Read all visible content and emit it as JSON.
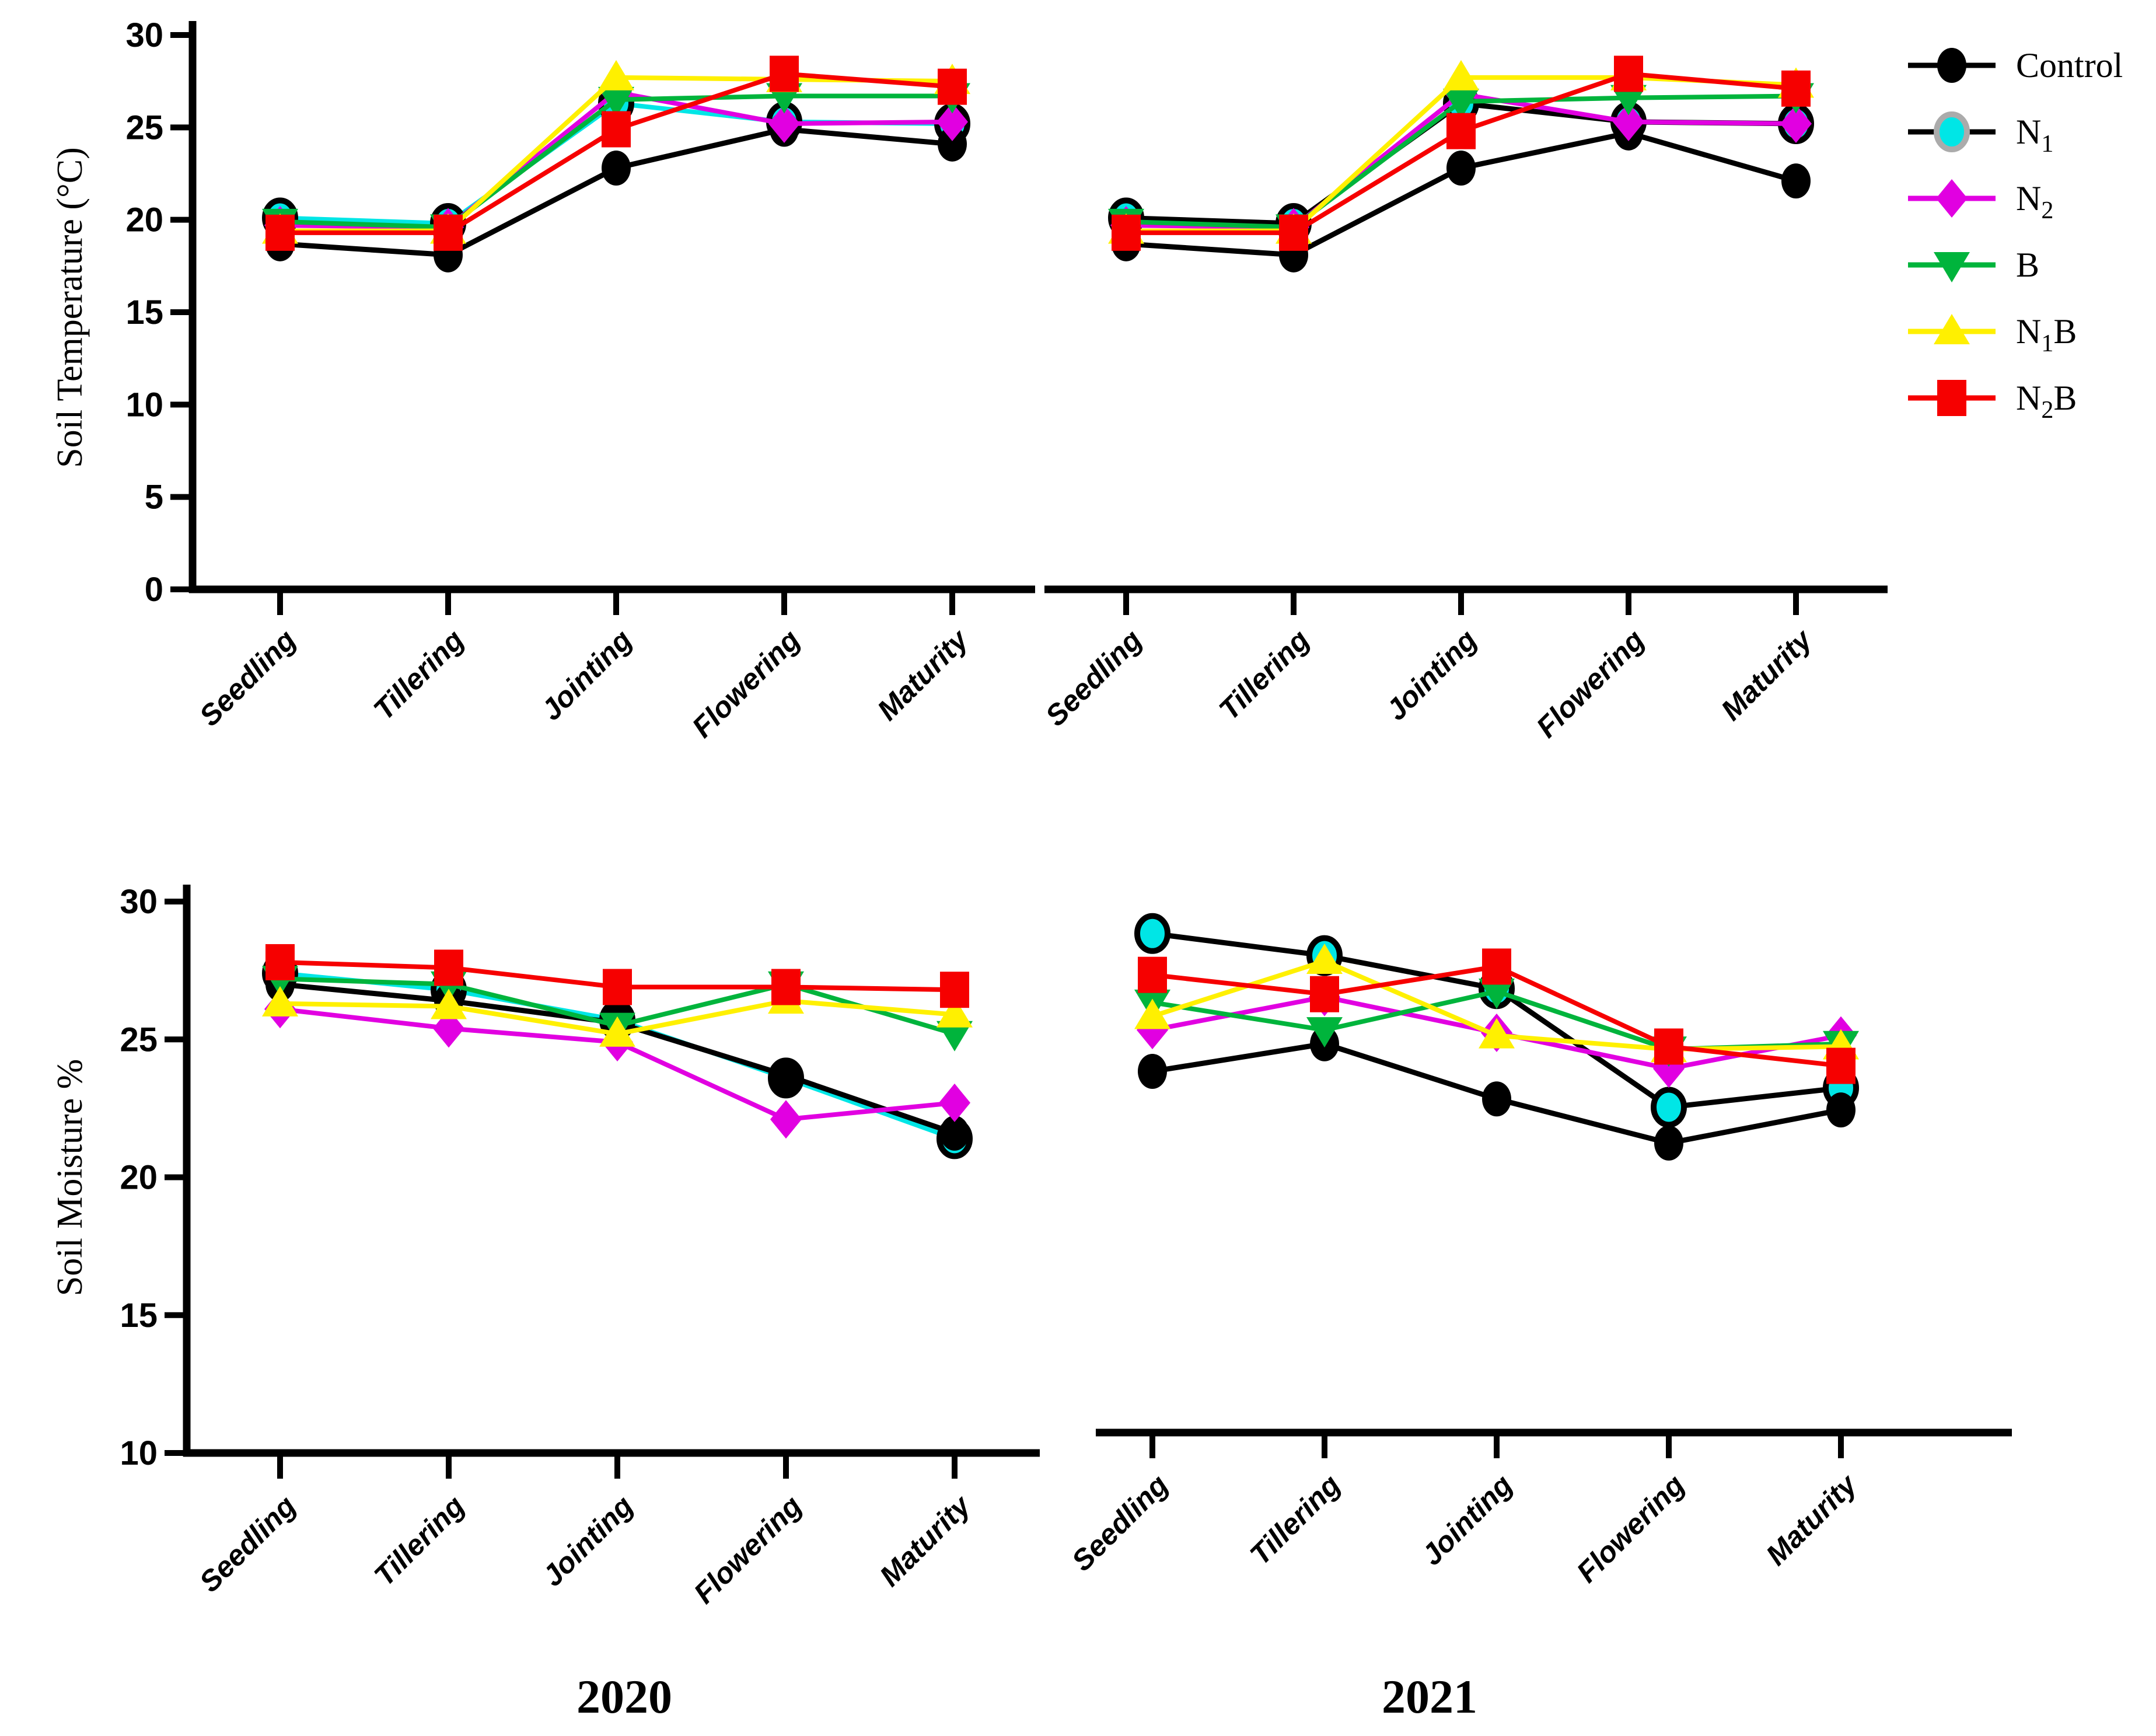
{
  "figure": {
    "background_color": "#ffffff",
    "stages": [
      "Seedling",
      "Tillering",
      "Jointing",
      "Flowering",
      "Maturity"
    ],
    "years": [
      "2020",
      "2021"
    ],
    "axis_color": "#000000",
    "legend": {
      "position": "top-right",
      "items": [
        {
          "label": "Control",
          "parts": [
            [
              "t",
              "Control"
            ]
          ],
          "marker": "circle",
          "marker_color": "#000000",
          "marker_stroke": null,
          "line_color": "#000000"
        },
        {
          "label": "N1",
          "parts": [
            [
              "t",
              "N"
            ],
            [
              "s",
              "1"
            ]
          ],
          "marker": "circle",
          "marker_color": "#00e6e6",
          "marker_stroke": "#ababab",
          "line_color": "#000000"
        },
        {
          "label": "N2",
          "parts": [
            [
              "t",
              "N"
            ],
            [
              "s",
              "2"
            ]
          ],
          "marker": "diamond",
          "marker_color": "#e100e1",
          "marker_stroke": null,
          "line_color": "#e100e1"
        },
        {
          "label": "B",
          "parts": [
            [
              "t",
              "B"
            ]
          ],
          "marker": "triangle-down",
          "marker_color": "#00b43c",
          "marker_stroke": null,
          "line_color": "#00b43c"
        },
        {
          "label": "N1B",
          "parts": [
            [
              "t",
              "N"
            ],
            [
              "s",
              "1"
            ],
            [
              "t",
              "B"
            ]
          ],
          "marker": "triangle-up",
          "marker_color": "#fff000",
          "marker_stroke": null,
          "line_color": "#fff000"
        },
        {
          "label": "N2B",
          "parts": [
            [
              "t",
              "N"
            ],
            [
              "s",
              "2"
            ],
            [
              "t",
              "B"
            ]
          ],
          "marker": "square",
          "marker_color": "#f60000",
          "marker_stroke": null,
          "line_color": "#f60000"
        }
      ]
    }
  },
  "chart_data": [
    {
      "id": "soil-temperature-2020",
      "type": "line",
      "year": "2020",
      "title": "",
      "xlabel": "",
      "ylabel": "Soil Temperature (°C)",
      "ylim": [
        0,
        30
      ],
      "yticks": [
        0,
        5,
        10,
        15,
        20,
        25,
        30
      ],
      "grid": false,
      "categories": [
        "Seedling",
        "Tillering",
        "Jointing",
        "Flowering",
        "Maturity"
      ],
      "series": [
        {
          "name": "Control",
          "marker": "circle",
          "marker_color": "#000000",
          "marker_stroke": null,
          "line_color": "#000000",
          "values": [
            18.7,
            18.1,
            22.8,
            24.9,
            24.1
          ]
        },
        {
          "name": "N1",
          "marker": "circle",
          "marker_color": "#00e6e6",
          "marker_stroke": "#000000",
          "line_color": "#00e6e6",
          "values": [
            20.1,
            19.8,
            26.3,
            25.3,
            25.2
          ]
        },
        {
          "name": "N2",
          "marker": "diamond",
          "marker_color": "#e100e1",
          "marker_stroke": null,
          "line_color": "#e100e1",
          "values": [
            19.7,
            19.6,
            26.9,
            25.2,
            25.3
          ]
        },
        {
          "name": "B",
          "marker": "triangle-down",
          "marker_color": "#00b43c",
          "marker_stroke": null,
          "line_color": "#00b43c",
          "values": [
            19.9,
            19.6,
            26.5,
            26.7,
            26.7
          ]
        },
        {
          "name": "N1B",
          "marker": "triangle-up",
          "marker_color": "#fff000",
          "marker_stroke": null,
          "line_color": "#fff000",
          "values": [
            19.4,
            19.4,
            27.7,
            27.6,
            27.5
          ]
        },
        {
          "name": "N2B",
          "marker": "square",
          "marker_color": "#f60000",
          "marker_stroke": null,
          "line_color": "#f60000",
          "values": [
            19.3,
            19.3,
            24.9,
            27.9,
            27.2
          ]
        }
      ]
    },
    {
      "id": "soil-temperature-2021",
      "type": "line",
      "year": "2021",
      "title": "",
      "xlabel": "",
      "ylabel": "Soil Temperature (°C)",
      "ylim": [
        0,
        30
      ],
      "yticks": [
        0,
        5,
        10,
        15,
        20,
        25,
        30
      ],
      "grid": false,
      "categories": [
        "Seedling",
        "Tillering",
        "Jointing",
        "Flowering",
        "Maturity"
      ],
      "series": [
        {
          "name": "Control",
          "marker": "circle",
          "marker_color": "#000000",
          "marker_stroke": null,
          "line_color": "#000000",
          "values": [
            18.7,
            18.1,
            22.8,
            24.7,
            22.1
          ]
        },
        {
          "name": "N1",
          "marker": "circle",
          "marker_color": "#00e6e6",
          "marker_stroke": "#000000",
          "line_color": "#000000",
          "values": [
            20.1,
            19.8,
            26.3,
            25.3,
            25.2
          ]
        },
        {
          "name": "N2",
          "marker": "diamond",
          "marker_color": "#e100e1",
          "marker_stroke": null,
          "line_color": "#e100e1",
          "values": [
            19.7,
            19.6,
            26.8,
            25.3,
            25.2
          ]
        },
        {
          "name": "B",
          "marker": "triangle-down",
          "marker_color": "#00b43c",
          "marker_stroke": null,
          "line_color": "#00b43c",
          "values": [
            19.9,
            19.6,
            26.4,
            26.6,
            26.7
          ]
        },
        {
          "name": "N1B",
          "marker": "triangle-up",
          "marker_color": "#fff000",
          "marker_stroke": null,
          "line_color": "#fff000",
          "values": [
            19.4,
            19.4,
            27.7,
            27.7,
            27.3
          ]
        },
        {
          "name": "N2B",
          "marker": "square",
          "marker_color": "#f60000",
          "marker_stroke": null,
          "line_color": "#f60000",
          "values": [
            19.3,
            19.3,
            24.8,
            27.9,
            27.1
          ]
        }
      ]
    },
    {
      "id": "soil-moisture-2020",
      "type": "line",
      "year": "2020",
      "title": "",
      "xlabel": "",
      "ylabel": "Soil Moisture %",
      "ylim": [
        10,
        30
      ],
      "yticks": [
        10,
        15,
        20,
        25,
        30
      ],
      "grid": false,
      "categories": [
        "Seedling",
        "Tillering",
        "Jointing",
        "Flowering",
        "Maturity"
      ],
      "series": [
        {
          "name": "Control",
          "marker": "circle",
          "marker_color": "#000000",
          "marker_stroke": null,
          "line_color": "#000000",
          "values": [
            27.0,
            26.4,
            25.6,
            23.7,
            21.6
          ]
        },
        {
          "name": "N1",
          "marker": "circle",
          "marker_color": "#00e6e6",
          "marker_stroke": "#000000",
          "line_color": "#00e6e6",
          "values": [
            27.4,
            26.8,
            25.7,
            23.6,
            21.4
          ]
        },
        {
          "name": "N2",
          "marker": "diamond",
          "marker_color": "#e100e1",
          "marker_stroke": null,
          "line_color": "#e100e1",
          "values": [
            26.1,
            25.4,
            24.9,
            22.1,
            22.7
          ]
        },
        {
          "name": "B",
          "marker": "triangle-down",
          "marker_color": "#00b43c",
          "marker_stroke": null,
          "line_color": "#00b43c",
          "values": [
            27.2,
            27.0,
            25.5,
            27.0,
            25.2
          ]
        },
        {
          "name": "N1B",
          "marker": "triangle-up",
          "marker_color": "#fff000",
          "marker_stroke": null,
          "line_color": "#fff000",
          "values": [
            26.3,
            26.2,
            25.2,
            26.4,
            25.9
          ]
        },
        {
          "name": "N2B",
          "marker": "square",
          "marker_color": "#f60000",
          "marker_stroke": null,
          "line_color": "#f60000",
          "values": [
            27.8,
            27.6,
            26.9,
            26.9,
            26.8
          ]
        }
      ]
    },
    {
      "id": "soil-moisture-2021",
      "type": "line",
      "year": "2021",
      "title": "",
      "xlabel": "",
      "ylabel": "Soil Moisture %",
      "ylim": [
        10,
        30
      ],
      "yticks": [
        10,
        15,
        20,
        25,
        30
      ],
      "grid": false,
      "categories": [
        "Seedling",
        "Tillering",
        "Jointing",
        "Flowering",
        "Maturity"
      ],
      "series": [
        {
          "name": "Control",
          "marker": "circle",
          "marker_color": "#000000",
          "marker_stroke": null,
          "line_color": "#000000",
          "values": [
            23.1,
            24.1,
            22.1,
            20.5,
            21.7
          ]
        },
        {
          "name": "N1",
          "marker": "circle",
          "marker_color": "#00e6e6",
          "marker_stroke": "#000000",
          "line_color": "#000000",
          "values": [
            28.1,
            27.3,
            26.1,
            21.8,
            22.5
          ]
        },
        {
          "name": "N2",
          "marker": "diamond",
          "marker_color": "#e100e1",
          "marker_stroke": null,
          "line_color": "#e100e1",
          "values": [
            24.6,
            25.8,
            24.5,
            23.2,
            24.4
          ]
        },
        {
          "name": "B",
          "marker": "triangle-down",
          "marker_color": "#00b43c",
          "marker_stroke": null,
          "line_color": "#00b43c",
          "values": [
            25.6,
            24.6,
            26.0,
            23.9,
            24.1
          ]
        },
        {
          "name": "N1B",
          "marker": "triangle-up",
          "marker_color": "#fff000",
          "marker_stroke": null,
          "line_color": "#fff000",
          "values": [
            25.1,
            27.1,
            24.4,
            23.9,
            24.0
          ]
        },
        {
          "name": "N2B",
          "marker": "square",
          "marker_color": "#f60000",
          "marker_stroke": null,
          "line_color": "#f60000",
          "values": [
            26.6,
            25.9,
            26.9,
            24.0,
            23.3
          ]
        }
      ]
    }
  ]
}
